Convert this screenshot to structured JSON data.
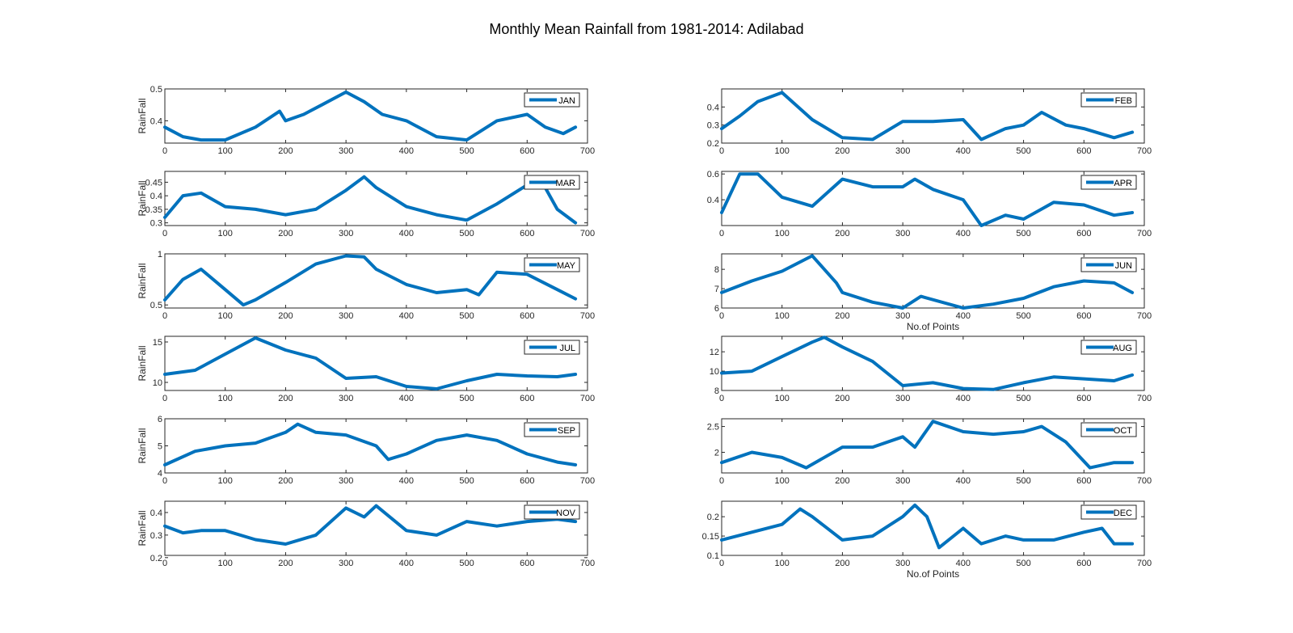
{
  "figure": {
    "title": "Monthly Mean Rainfall from 1981-2014: Adilabad",
    "line_color": "#0072BD"
  },
  "chart_data": [
    {
      "type": "line",
      "series": [
        {
          "name": "JAN",
          "x": [
            0,
            30,
            60,
            100,
            150,
            190,
            200,
            230,
            260,
            300,
            330,
            360,
            400,
            450,
            500,
            550,
            600,
            630,
            660,
            680
          ],
          "y": [
            0.38,
            0.35,
            0.34,
            0.34,
            0.38,
            0.43,
            0.4,
            0.42,
            0.45,
            0.49,
            0.46,
            0.42,
            0.4,
            0.35,
            0.34,
            0.4,
            0.42,
            0.38,
            0.36,
            0.38
          ]
        }
      ],
      "ylabel": "RainFall",
      "xlabel": "",
      "xlim": [
        0,
        700
      ],
      "ylim": [
        0.33,
        0.5
      ],
      "xticks": [
        0,
        100,
        200,
        300,
        400,
        500,
        600,
        700
      ],
      "yticks": [
        0.4,
        0.5
      ],
      "grid": false,
      "legend": "top-right"
    },
    {
      "type": "line",
      "series": [
        {
          "name": "FEB",
          "x": [
            0,
            30,
            60,
            100,
            150,
            200,
            250,
            300,
            350,
            400,
            430,
            470,
            500,
            530,
            570,
            600,
            650,
            680
          ],
          "y": [
            0.28,
            0.35,
            0.43,
            0.48,
            0.33,
            0.23,
            0.22,
            0.32,
            0.32,
            0.33,
            0.22,
            0.28,
            0.3,
            0.37,
            0.3,
            0.28,
            0.23,
            0.26
          ]
        }
      ],
      "ylabel": "",
      "xlabel": "",
      "xlim": [
        0,
        700
      ],
      "ylim": [
        0.2,
        0.5
      ],
      "xticks": [
        0,
        100,
        200,
        300,
        400,
        500,
        600,
        700
      ],
      "yticks": [
        0.2,
        0.3,
        0.4
      ],
      "grid": false,
      "legend": "top-right"
    },
    {
      "type": "line",
      "series": [
        {
          "name": "MAR",
          "x": [
            0,
            30,
            60,
            100,
            150,
            200,
            250,
            300,
            330,
            350,
            400,
            450,
            500,
            550,
            600,
            630,
            650,
            680
          ],
          "y": [
            0.32,
            0.4,
            0.41,
            0.36,
            0.35,
            0.33,
            0.35,
            0.42,
            0.47,
            0.43,
            0.36,
            0.33,
            0.31,
            0.37,
            0.44,
            0.43,
            0.35,
            0.3
          ]
        }
      ],
      "ylabel": "RainFall",
      "xlabel": "",
      "xlim": [
        0,
        700
      ],
      "ylim": [
        0.29,
        0.49
      ],
      "xticks": [
        0,
        100,
        200,
        300,
        400,
        500,
        600,
        700
      ],
      "yticks": [
        0.3,
        0.35,
        0.4,
        0.45
      ],
      "grid": false,
      "legend": "top-right"
    },
    {
      "type": "line",
      "series": [
        {
          "name": "APR",
          "x": [
            0,
            30,
            60,
            100,
            150,
            200,
            250,
            300,
            320,
            350,
            400,
            430,
            470,
            500,
            550,
            600,
            650,
            680
          ],
          "y": [
            0.3,
            0.6,
            0.6,
            0.42,
            0.35,
            0.56,
            0.5,
            0.5,
            0.56,
            0.48,
            0.4,
            0.2,
            0.28,
            0.25,
            0.38,
            0.36,
            0.28,
            0.3
          ]
        }
      ],
      "ylabel": "",
      "xlabel": "",
      "xlim": [
        0,
        700
      ],
      "ylim": [
        0.2,
        0.62
      ],
      "xticks": [
        0,
        100,
        200,
        300,
        400,
        500,
        600,
        700
      ],
      "yticks": [
        0.4,
        0.6
      ],
      "grid": false,
      "legend": "top-right"
    },
    {
      "type": "line",
      "series": [
        {
          "name": "MAY",
          "x": [
            0,
            30,
            60,
            100,
            130,
            150,
            200,
            250,
            300,
            330,
            350,
            400,
            450,
            500,
            520,
            550,
            600,
            650,
            680
          ],
          "y": [
            0.55,
            0.75,
            0.85,
            0.65,
            0.5,
            0.55,
            0.72,
            0.9,
            0.98,
            0.97,
            0.85,
            0.7,
            0.62,
            0.65,
            0.6,
            0.82,
            0.8,
            0.65,
            0.56
          ]
        }
      ],
      "ylabel": "RainFall",
      "xlabel": "",
      "xlim": [
        0,
        700
      ],
      "ylim": [
        0.47,
        1.0
      ],
      "xticks": [
        0,
        100,
        200,
        300,
        400,
        500,
        600,
        700
      ],
      "yticks": [
        0.5,
        1
      ],
      "grid": false,
      "legend": "top-right"
    },
    {
      "type": "line",
      "series": [
        {
          "name": "JUN",
          "x": [
            0,
            50,
            100,
            150,
            190,
            200,
            250,
            300,
            330,
            400,
            450,
            500,
            550,
            600,
            650,
            680
          ],
          "y": [
            6.8,
            7.4,
            7.9,
            8.7,
            7.3,
            6.8,
            6.3,
            6.0,
            6.6,
            6.0,
            6.2,
            6.5,
            7.1,
            7.4,
            7.3,
            6.8
          ]
        }
      ],
      "ylabel": "",
      "xlabel": "No.of Points",
      "xlim": [
        0,
        700
      ],
      "ylim": [
        6,
        8.8
      ],
      "xticks": [
        0,
        100,
        200,
        300,
        400,
        500,
        600,
        700
      ],
      "yticks": [
        6,
        7,
        8
      ],
      "grid": false,
      "legend": "top-right"
    },
    {
      "type": "line",
      "series": [
        {
          "name": "JUL",
          "x": [
            0,
            50,
            100,
            150,
            200,
            250,
            300,
            350,
            400,
            450,
            500,
            550,
            600,
            650,
            680
          ],
          "y": [
            11,
            11.5,
            13.5,
            15.5,
            14,
            13,
            10.5,
            10.7,
            9.5,
            9.2,
            10.2,
            11,
            10.8,
            10.7,
            11
          ]
        }
      ],
      "ylabel": "RainFall",
      "xlabel": "",
      "xlim": [
        0,
        700
      ],
      "ylim": [
        9,
        15.7
      ],
      "xticks": [
        0,
        100,
        200,
        300,
        400,
        500,
        600,
        700
      ],
      "yticks": [
        10,
        15
      ],
      "grid": false,
      "legend": "top-right"
    },
    {
      "type": "line",
      "series": [
        {
          "name": "AUG",
          "x": [
            0,
            50,
            100,
            150,
            170,
            200,
            250,
            300,
            350,
            400,
            450,
            500,
            550,
            600,
            650,
            680
          ],
          "y": [
            9.8,
            10.0,
            11.5,
            13.0,
            13.5,
            12.5,
            11.0,
            8.5,
            8.8,
            8.2,
            8.1,
            8.8,
            9.4,
            9.2,
            9.0,
            9.6
          ]
        }
      ],
      "ylabel": "",
      "xlabel": "",
      "xlim": [
        0,
        700
      ],
      "ylim": [
        8,
        13.6
      ],
      "xticks": [
        0,
        100,
        200,
        300,
        400,
        500,
        600,
        700
      ],
      "yticks": [
        8,
        10,
        12
      ],
      "grid": false,
      "legend": "top-right"
    },
    {
      "type": "line",
      "series": [
        {
          "name": "SEP",
          "x": [
            0,
            50,
            100,
            150,
            200,
            220,
            250,
            300,
            350,
            370,
            400,
            450,
            500,
            550,
            600,
            650,
            680
          ],
          "y": [
            4.3,
            4.8,
            5.0,
            5.1,
            5.5,
            5.8,
            5.5,
            5.4,
            5.0,
            4.5,
            4.7,
            5.2,
            5.4,
            5.2,
            4.7,
            4.4,
            4.3
          ]
        }
      ],
      "ylabel": "RainFall",
      "xlabel": "",
      "xlim": [
        0,
        700
      ],
      "ylim": [
        4,
        6
      ],
      "xticks": [
        0,
        100,
        200,
        300,
        400,
        500,
        600,
        700
      ],
      "yticks": [
        4,
        5,
        6
      ],
      "grid": false,
      "legend": "top-right"
    },
    {
      "type": "line",
      "series": [
        {
          "name": "OCT",
          "x": [
            0,
            50,
            100,
            140,
            200,
            250,
            300,
            320,
            350,
            400,
            450,
            500,
            530,
            570,
            610,
            650,
            680
          ],
          "y": [
            1.8,
            2.0,
            1.9,
            1.7,
            2.1,
            2.1,
            2.3,
            2.1,
            2.6,
            2.4,
            2.35,
            2.4,
            2.5,
            2.2,
            1.7,
            1.8,
            1.8
          ]
        }
      ],
      "ylabel": "",
      "xlabel": "",
      "xlim": [
        0,
        700
      ],
      "ylim": [
        1.6,
        2.65
      ],
      "xticks": [
        0,
        100,
        200,
        300,
        400,
        500,
        600,
        700
      ],
      "yticks": [
        2,
        2.5
      ],
      "grid": false,
      "legend": "top-right"
    },
    {
      "type": "line",
      "series": [
        {
          "name": "NOV",
          "x": [
            0,
            30,
            60,
            100,
            150,
            200,
            250,
            300,
            330,
            350,
            400,
            450,
            500,
            550,
            600,
            650,
            680
          ],
          "y": [
            0.34,
            0.31,
            0.32,
            0.32,
            0.28,
            0.26,
            0.3,
            0.42,
            0.38,
            0.43,
            0.32,
            0.3,
            0.36,
            0.34,
            0.36,
            0.37,
            0.36
          ]
        }
      ],
      "ylabel": "RainFall",
      "xlabel": "",
      "xlim": [
        0,
        700
      ],
      "ylim": [
        0.21,
        0.45
      ],
      "xticks": [
        0,
        100,
        200,
        300,
        400,
        500,
        600,
        700
      ],
      "yticks": [
        0.2,
        0.3,
        0.4
      ],
      "grid": false,
      "legend": "top-right"
    },
    {
      "type": "line",
      "series": [
        {
          "name": "DEC",
          "x": [
            0,
            50,
            100,
            130,
            150,
            200,
            250,
            300,
            320,
            340,
            360,
            400,
            430,
            470,
            500,
            550,
            600,
            630,
            650,
            680
          ],
          "y": [
            0.14,
            0.16,
            0.18,
            0.22,
            0.2,
            0.14,
            0.15,
            0.2,
            0.23,
            0.2,
            0.12,
            0.17,
            0.13,
            0.15,
            0.14,
            0.14,
            0.16,
            0.17,
            0.13,
            0.13
          ]
        }
      ],
      "ylabel": "",
      "xlabel": "No.of Points",
      "xlim": [
        0,
        700
      ],
      "ylim": [
        0.1,
        0.24
      ],
      "xticks": [
        0,
        100,
        200,
        300,
        400,
        500,
        600,
        700
      ],
      "yticks": [
        0.1,
        0.15,
        0.2
      ],
      "grid": false,
      "legend": "top-right"
    }
  ]
}
